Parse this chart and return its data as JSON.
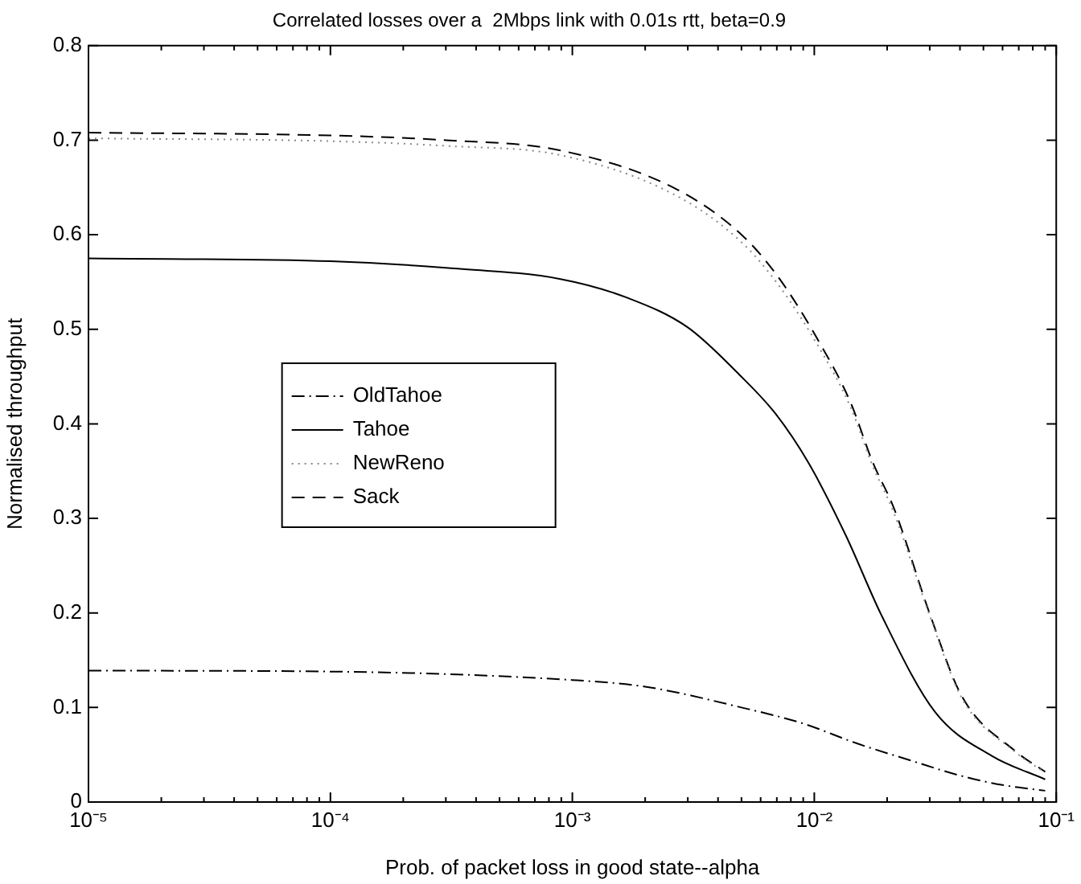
{
  "chart_data": {
    "type": "line",
    "title": "Correlated losses over a  2Mbps link with 0.01s rtt, beta=0.9",
    "xlabel": "Prob. of packet loss in good state--alpha",
    "ylabel": "Normalised throughput",
    "log": "x",
    "grid": false,
    "legend": "center left",
    "marker": "none",
    "xlim": [
      1e-05,
      0.1
    ],
    "xticks": [
      {
        "value": 1e-05,
        "label": "10⁻⁵"
      },
      {
        "value": 2e-05,
        "label": null
      },
      {
        "value": 3e-05,
        "label": null
      },
      {
        "value": 4e-05,
        "label": null
      },
      {
        "value": 5e-05,
        "label": null
      },
      {
        "value": 6e-05,
        "label": null
      },
      {
        "value": 7e-05,
        "label": null
      },
      {
        "value": 8e-05,
        "label": null
      },
      {
        "value": 9e-05,
        "label": null
      },
      {
        "value": 0.0001,
        "label": "10⁻⁴"
      },
      {
        "value": 0.0002,
        "label": null
      },
      {
        "value": 0.0003,
        "label": null
      },
      {
        "value": 0.0004,
        "label": null
      },
      {
        "value": 0.0005,
        "label": null
      },
      {
        "value": 0.0006,
        "label": null
      },
      {
        "value": 0.0007,
        "label": null
      },
      {
        "value": 0.0008,
        "label": null
      },
      {
        "value": 0.0009,
        "label": null
      },
      {
        "value": 0.001,
        "label": "10⁻³"
      },
      {
        "value": 0.002,
        "label": null
      },
      {
        "value": 0.003,
        "label": null
      },
      {
        "value": 0.004,
        "label": null
      },
      {
        "value": 0.005,
        "label": null
      },
      {
        "value": 0.006,
        "label": null
      },
      {
        "value": 0.007,
        "label": null
      },
      {
        "value": 0.008,
        "label": null
      },
      {
        "value": 0.009,
        "label": null
      },
      {
        "value": 0.01,
        "label": "10⁻²"
      },
      {
        "value": 0.02,
        "label": null
      },
      {
        "value": 0.03,
        "label": null
      },
      {
        "value": 0.04,
        "label": null
      },
      {
        "value": 0.05,
        "label": null
      },
      {
        "value": 0.06,
        "label": null
      },
      {
        "value": 0.07,
        "label": null
      },
      {
        "value": 0.08,
        "label": null
      },
      {
        "value": 0.09,
        "label": null
      },
      {
        "value": 0.1,
        "label": "10⁻¹"
      }
    ],
    "ylim": [
      0,
      0.8
    ],
    "yticks": [
      0,
      0.1,
      0.2,
      0.3,
      0.4,
      0.5,
      0.6,
      0.7,
      0.8
    ],
    "series": [
      {
        "name": "OldTahoe",
        "color": "#000000",
        "line_style": "dashdot",
        "x": [
          1e-05,
          0.0001,
          0.001,
          0.002,
          0.005,
          0.009,
          0.015,
          0.025,
          0.04,
          0.06,
          0.09
        ],
        "values": [
          0.139,
          0.138,
          0.129,
          0.122,
          0.1,
          0.083,
          0.062,
          0.044,
          0.028,
          0.018,
          0.012
        ]
      },
      {
        "name": "Tahoe",
        "color": "#000000",
        "line_style": "solid",
        "x": [
          1e-05,
          0.0001,
          0.0003,
          0.0009,
          0.0017,
          0.003,
          0.0049,
          0.0069,
          0.0095,
          0.0135,
          0.019,
          0.0316,
          0.054,
          0.09
        ],
        "values": [
          0.575,
          0.572,
          0.565,
          0.553,
          0.533,
          0.502,
          0.452,
          0.411,
          0.358,
          0.282,
          0.197,
          0.095,
          0.049,
          0.024
        ]
      },
      {
        "name": "NewReno",
        "color": "#888888",
        "line_style": "dotted",
        "x": [
          1e-05,
          0.0001,
          0.0003,
          0.0009,
          0.00275,
          0.0051,
          0.0072,
          0.0105,
          0.0141,
          0.0174,
          0.0214,
          0.0302,
          0.0407,
          0.0676,
          0.09
        ],
        "values": [
          0.702,
          0.699,
          0.694,
          0.684,
          0.64,
          0.59,
          0.545,
          0.48,
          0.418,
          0.356,
          0.305,
          0.195,
          0.11,
          0.053,
          0.031
        ]
      },
      {
        "name": "Sack",
        "color": "#000000",
        "line_style": "dashed",
        "x": [
          1e-05,
          0.0001,
          0.0003,
          0.0009,
          0.00275,
          0.0051,
          0.0072,
          0.0105,
          0.0141,
          0.0174,
          0.0214,
          0.0302,
          0.0407,
          0.0676,
          0.09
        ],
        "values": [
          0.708,
          0.705,
          0.7,
          0.689,
          0.647,
          0.598,
          0.553,
          0.486,
          0.423,
          0.36,
          0.31,
          0.197,
          0.112,
          0.054,
          0.032
        ]
      }
    ]
  }
}
